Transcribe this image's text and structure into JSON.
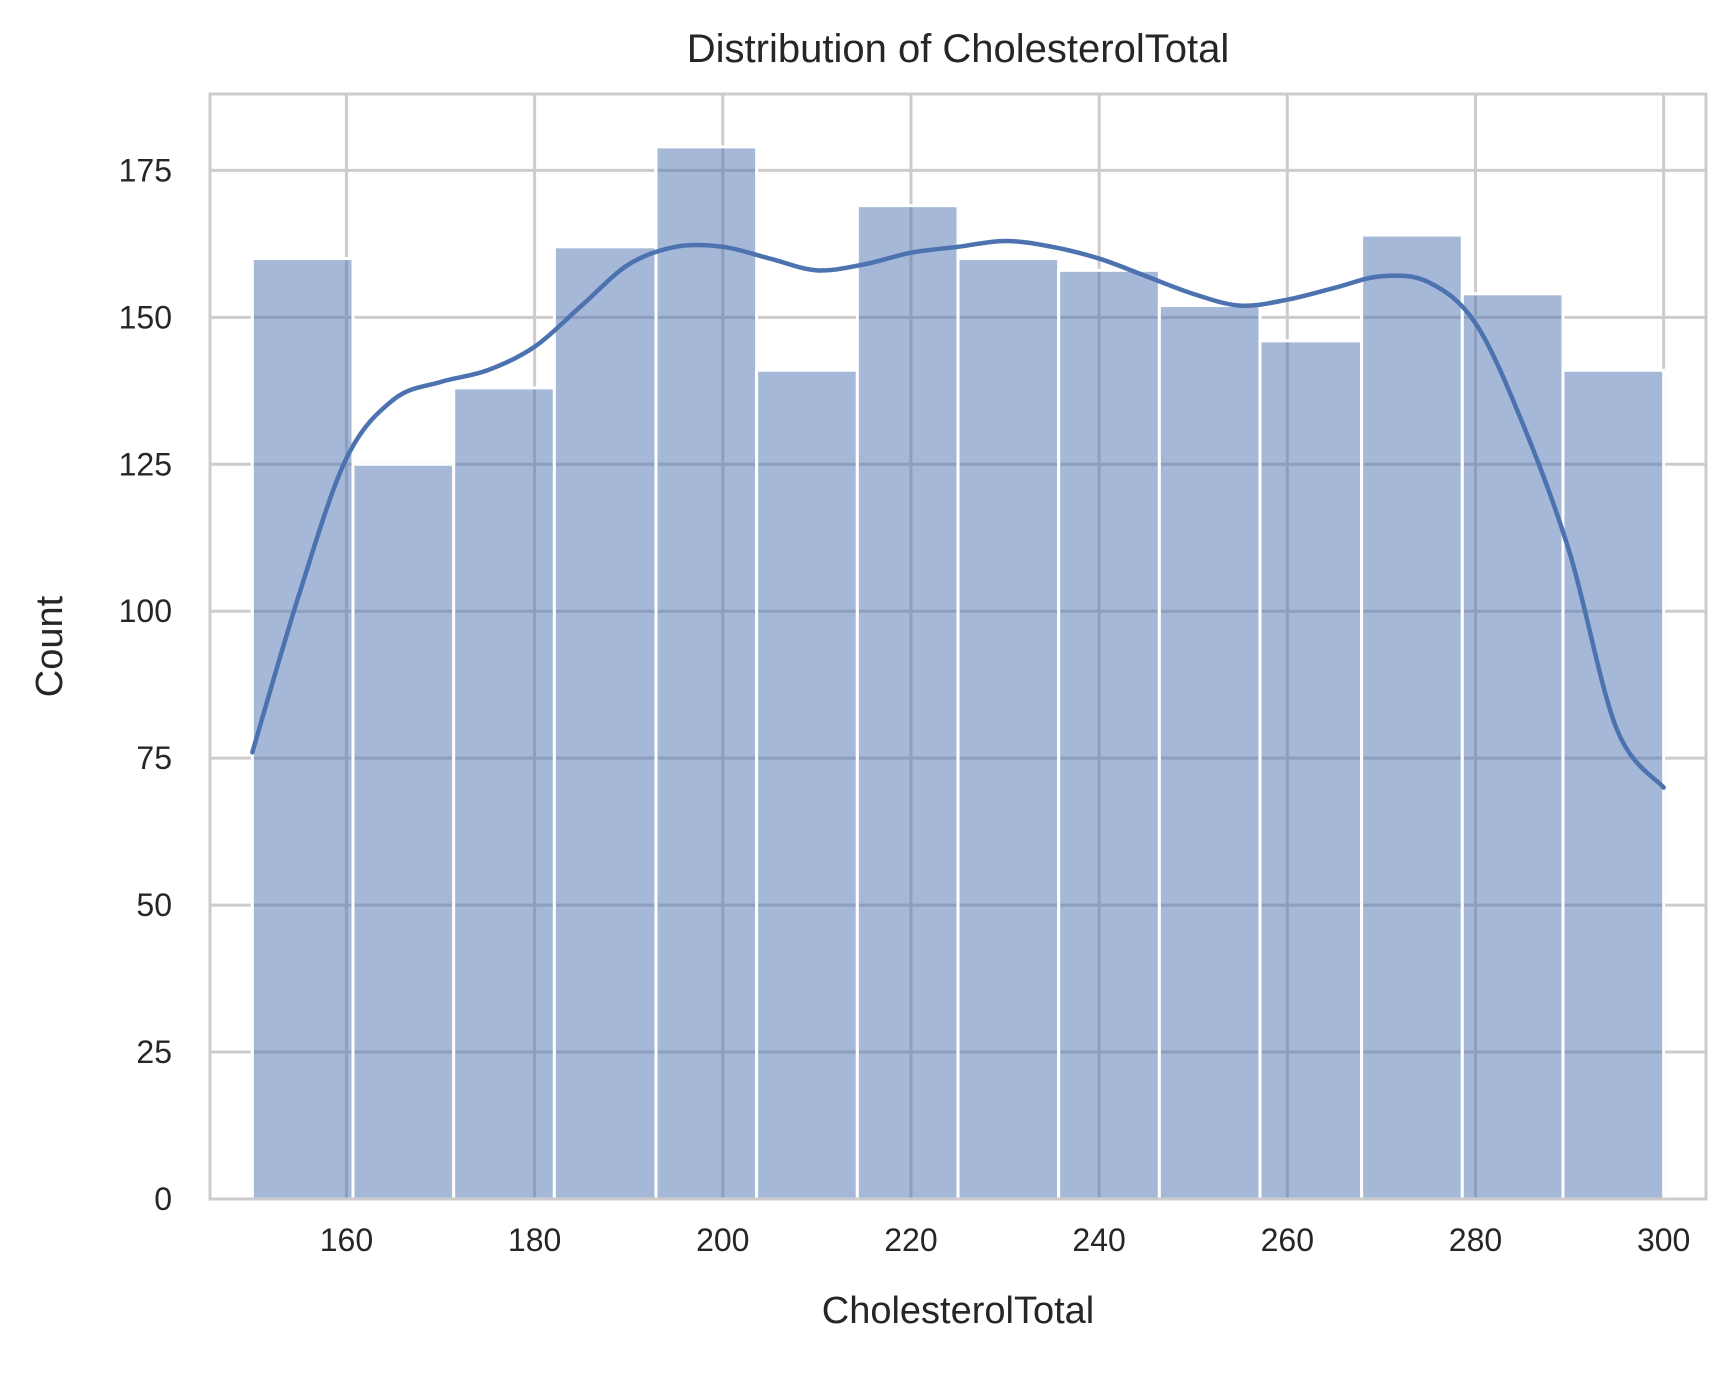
{
  "chart_data": {
    "type": "bar",
    "subtype": "histogram_with_kde",
    "title": "Distribution of CholesterolTotal",
    "xlabel": "CholesterolTotal",
    "ylabel": "Count",
    "xlim": [
      145.5,
      304.5
    ],
    "ylim": [
      0,
      188
    ],
    "xticks": [
      160,
      180,
      200,
      220,
      240,
      260,
      280,
      300
    ],
    "yticks": [
      0,
      25,
      50,
      75,
      100,
      125,
      150,
      175
    ],
    "grid": true,
    "legend": "none",
    "colors": {
      "bar_fill": "#4c72b0",
      "bar_opacity": 0.5,
      "kde_line": "#4c72b0",
      "grid": "#cccccc",
      "background": "#ffffff"
    },
    "bins": [
      {
        "x0": 150.0,
        "x1": 160.7,
        "count": 160
      },
      {
        "x0": 160.7,
        "x1": 171.4,
        "count": 125
      },
      {
        "x0": 171.4,
        "x1": 182.1,
        "count": 138
      },
      {
        "x0": 182.1,
        "x1": 192.9,
        "count": 162
      },
      {
        "x0": 192.9,
        "x1": 203.6,
        "count": 179
      },
      {
        "x0": 203.6,
        "x1": 214.3,
        "count": 141
      },
      {
        "x0": 214.3,
        "x1": 225.0,
        "count": 169
      },
      {
        "x0": 225.0,
        "x1": 235.7,
        "count": 160
      },
      {
        "x0": 235.7,
        "x1": 246.4,
        "count": 158
      },
      {
        "x0": 246.4,
        "x1": 257.1,
        "count": 152
      },
      {
        "x0": 257.1,
        "x1": 267.9,
        "count": 146
      },
      {
        "x0": 267.9,
        "x1": 278.6,
        "count": 164
      },
      {
        "x0": 278.6,
        "x1": 289.3,
        "count": 154
      },
      {
        "x0": 289.3,
        "x1": 300.0,
        "count": 141
      }
    ],
    "kde": {
      "x": [
        150,
        155,
        160,
        165,
        170,
        175,
        180,
        185,
        190,
        195,
        200,
        205,
        210,
        215,
        220,
        225,
        230,
        235,
        240,
        245,
        250,
        255,
        260,
        265,
        270,
        275,
        280,
        285,
        290,
        295,
        300
      ],
      "y": [
        76,
        103,
        126,
        136,
        139,
        141,
        145,
        152,
        159,
        162,
        162,
        160,
        158,
        159,
        161,
        162,
        163,
        162,
        160,
        157,
        154,
        152,
        153,
        155,
        157,
        156,
        149,
        132,
        110,
        80,
        70
      ]
    }
  }
}
